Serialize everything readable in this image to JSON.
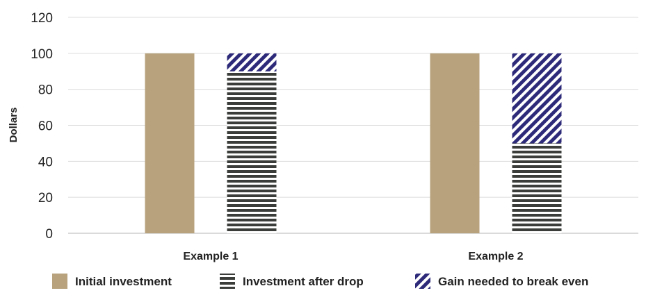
{
  "chart_data": {
    "type": "bar",
    "stacked": true,
    "categories": [
      "Example 1",
      "Example 2"
    ],
    "ylabel": "Dollars",
    "ylim": [
      0,
      120
    ],
    "yticks": [
      0,
      20,
      40,
      60,
      80,
      100,
      120
    ],
    "grid": true,
    "legend_placement": "bottom",
    "series": [
      {
        "name": "Initial investment",
        "values": [
          100,
          100
        ],
        "group": "left",
        "color": "#b8a27e",
        "pattern": "solid"
      },
      {
        "name": "Investment after drop",
        "values": [
          90,
          50
        ],
        "group": "right",
        "color": "#3a3d3a",
        "pattern": "horizontal-stripes"
      },
      {
        "name": "Gain needed to break even",
        "values": [
          10,
          50
        ],
        "group": "right",
        "color": "#2e2a7a",
        "pattern": "diagonal-stripes"
      }
    ]
  }
}
